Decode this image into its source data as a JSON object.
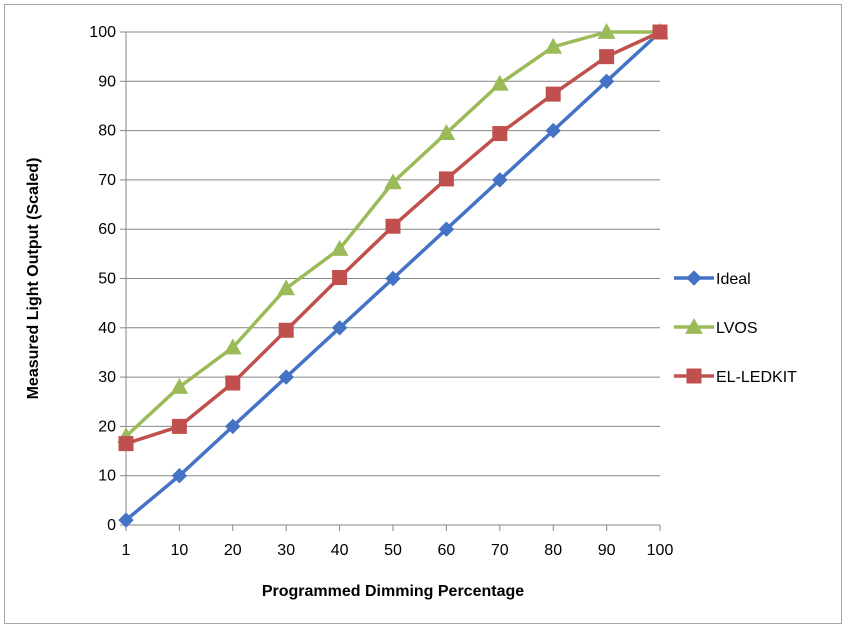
{
  "chart_data": {
    "type": "line",
    "title": "",
    "xlabel": "Programmed Dimming Percentage",
    "ylabel": "Measured Light Output (Scaled)",
    "categories": [
      "1",
      "10",
      "20",
      "30",
      "40",
      "50",
      "60",
      "70",
      "80",
      "90",
      "100"
    ],
    "ylim": [
      0,
      100
    ],
    "yticks": [
      0,
      10,
      20,
      30,
      40,
      50,
      60,
      70,
      80,
      90,
      100
    ],
    "grid": true,
    "legend": "right",
    "series": [
      {
        "name": "Ideal",
        "color": "#4472c4",
        "marker": "diamond",
        "values": [
          1,
          10,
          20,
          30,
          40,
          50,
          60,
          70,
          80,
          90,
          100
        ]
      },
      {
        "name": "LVOS",
        "color": "#9bbb59",
        "marker": "triangle",
        "values": [
          18,
          28,
          36,
          48,
          56,
          69.5,
          79.5,
          89.5,
          97,
          100,
          100
        ]
      },
      {
        "name": "EL-LEDKIT",
        "color": "#c0504d",
        "marker": "square",
        "values": [
          16.5,
          20,
          28.8,
          39.5,
          50.2,
          60.6,
          70.2,
          79.4,
          87.4,
          95,
          100
        ]
      }
    ]
  }
}
